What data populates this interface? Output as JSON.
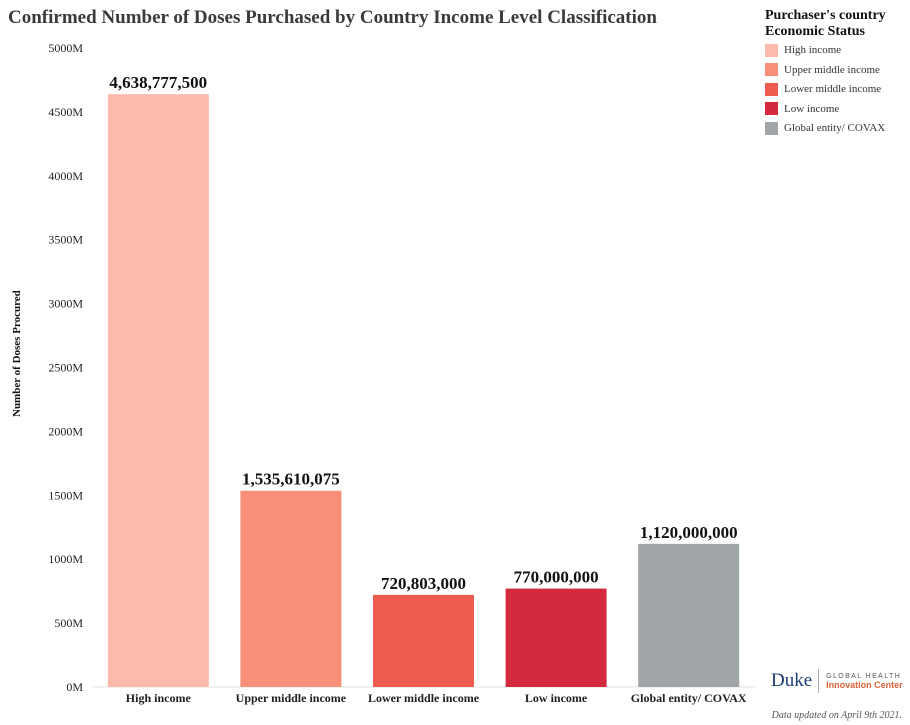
{
  "chart_data": {
    "type": "bar",
    "title": "Confirmed Number of Doses Purchased by Country Income Level Classification",
    "xlabel": "",
    "ylabel": "Number of Doses Procured",
    "categories": [
      "High income",
      "Upper middle income",
      "Lower middle income",
      "Low income",
      "Global entity/ COVAX"
    ],
    "values": [
      4638777500,
      1535610075,
      720803000,
      770000000,
      1120000000
    ],
    "value_labels": [
      "4,638,777,500",
      "1,535,610,075",
      "720,803,000",
      "770,000,000",
      "1,120,000,000"
    ],
    "colors": [
      "#fbbaaa",
      "#f88f78",
      "#ef5b4e",
      "#d52a3e",
      "#a0a5a8"
    ],
    "ylim": [
      0,
      5000000000
    ],
    "yticks": [
      0,
      500000000,
      1000000000,
      1500000000,
      2000000000,
      2500000000,
      3000000000,
      3500000000,
      4000000000,
      4500000000,
      5000000000
    ],
    "ytick_labels": [
      "0M",
      "500M",
      "1000M",
      "1500M",
      "2000M",
      "2500M",
      "3000M",
      "3500M",
      "4000M",
      "4500M",
      "5000M"
    ],
    "grid": false,
    "legend": {
      "title": "Purchaser's country Economic  Status",
      "placement": "top-right",
      "entries": [
        "High income",
        "Upper middle income",
        "Lower middle income",
        "Low income",
        "Global entity/ COVAX"
      ]
    }
  },
  "branding": {
    "logo_word": "Duke",
    "logo_line1": "GLOBAL HEALTH",
    "logo_line2": "Innovation Center"
  },
  "footnote": "Data updated on April 9th 2021."
}
